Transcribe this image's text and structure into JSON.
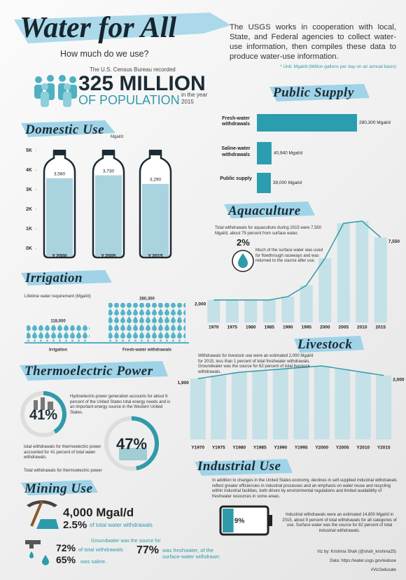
{
  "header": {
    "title": "Water for All",
    "subtitle": "How much do we use?",
    "intro": "The USGS works in cooperation with local, State, and Federal agencies to collect water-use information, then compiles these data to produce water-use information.",
    "note": "* Unit: Mgal/d (Million gallons per day on an annual basis)"
  },
  "population": {
    "lead": "The U.S. Census Bureau recorded",
    "number": "325 MILLION",
    "unit": "OF POPULATION",
    "year_text": "in the year 2015"
  },
  "domestic": {
    "title": "Domestic Use",
    "unit": "Mgal/d",
    "ylim": [
      0,
      5000
    ],
    "yticks": [
      {
        "value": 0,
        "label": "0K"
      },
      {
        "value": 1000,
        "label": "1K"
      },
      {
        "value": 2000,
        "label": "2K"
      },
      {
        "value": 3000,
        "label": "3K"
      },
      {
        "value": 4000,
        "label": "4K"
      },
      {
        "value": 5000,
        "label": "5K"
      }
    ],
    "categories": [
      "Y.2000",
      "Y.2005",
      "Y.2015"
    ],
    "values": [
      3580,
      3730,
      3290
    ],
    "value_labels": [
      "3,580",
      "3,730",
      "3,290"
    ]
  },
  "public_supply": {
    "title": "Public Supply",
    "categories": [
      "Fresh-water withdrawals",
      "Saline-water withdrawals",
      "Public supply"
    ],
    "values": [
      280300,
      40940,
      39000
    ],
    "value_labels": [
      "280,300 Mgal/d",
      "40,940 Mgal/d",
      "39,000 Mgal/d"
    ]
  },
  "irrigation": {
    "title": "Irrigation",
    "subtitle": "Lifetime water requirement (Mgal/d)",
    "categories": [
      "Irrigation",
      "Fresh-water withdrawals"
    ],
    "values": [
      118000,
      280300
    ],
    "value_labels": [
      "118,000",
      "280,300"
    ]
  },
  "aquaculture": {
    "title": "Aquaculture",
    "text": "Total withdrawals for aquaculture during 2015 were 7,550 Mgal/d, about 79 percent from surface water.",
    "pct": "2%",
    "pct_text": "Much of the surface water was used for flowthrough raceways and was returned to the source after use.",
    "categories": [
      "1970",
      "1975",
      "1980",
      "1985",
      "1990",
      "1995",
      "2000",
      "2005",
      "2010",
      "2015"
    ],
    "values": [
      2000,
      2000,
      2000,
      2000,
      2300,
      3300,
      5700,
      8800,
      9000,
      7550
    ],
    "value_labels": [
      "2,000",
      null,
      null,
      null,
      null,
      null,
      null,
      null,
      null,
      "7,550"
    ]
  },
  "livestock": {
    "title": "Livestock",
    "text": "Withdrawals for livestock use were an estimated 2,000 Mgal/d for 2015, less than 1 percent of total freshwater withdrawals. Groundwater was the source for 62 percent of total livestock withdrawals.",
    "categories": [
      "Y1970",
      "Y1975",
      "Y1980",
      "Y1985",
      "Y1990",
      "Y1995",
      "Y2000",
      "Y2005",
      "Y2010",
      "Y2015"
    ],
    "values": [
      1900,
      2000,
      2100,
      2150,
      2200,
      2250,
      2300,
      2200,
      2100,
      2000
    ],
    "value_labels": [
      "1,900",
      null,
      null,
      null,
      null,
      null,
      null,
      null,
      null,
      "2,000"
    ]
  },
  "thermoelectric": {
    "title": "Thermoelectric Power",
    "text": "Hydroelectric-power generation accounts for about 6 percent of the United States total energy needs and is an important energy source in the Western United States.",
    "pct1": {
      "value": 41,
      "label": "41%"
    },
    "text2": "total withdrawals for thermoelectric power accounted for 41 percent of total water withdrawals.",
    "pct2": {
      "value": 47,
      "label": "47%"
    },
    "text3": "Total withdrawals for thermoelectric power"
  },
  "mining": {
    "title": "Mining Use",
    "amount": "4,000 Mgal/d",
    "share": "2.5%",
    "share_text": "of total water withdrawals",
    "ground_text": "Groundwater was the source for",
    "ground_pct": "72%",
    "ground_tail": "of total withdrawals",
    "fresh_pct": "77%",
    "fresh_text": "was freshwater, of the surface-water withdrawn",
    "saline_pct": "65%",
    "saline_text": "was saline."
  },
  "industrial": {
    "title": "Industrial Use",
    "text": "In addition to changes in the United States economy, declines in self-supplied industrial withdrawals reflect greater efficiencies in industrial processes and an emphasis on water reuse and recycling within industrial facilities, both driven by environmental regulations and limited availability of freshwater resources in some areas.",
    "battery": {
      "value": 9,
      "label": "9%"
    },
    "text2": "Industrial withdrawals were an estimated 14,800 Mgal/d in 2015, about 9 percent of total withdrawals for all categories of use. Surface water was the source for 82 percent of total industrial withdrawals."
  },
  "credits": {
    "viz": "Viz by: Krishma Shah (@shah_krishma25)",
    "data": "Data: https://water.usgs.gov/watuse",
    "tag": "#Viz2educate"
  }
}
